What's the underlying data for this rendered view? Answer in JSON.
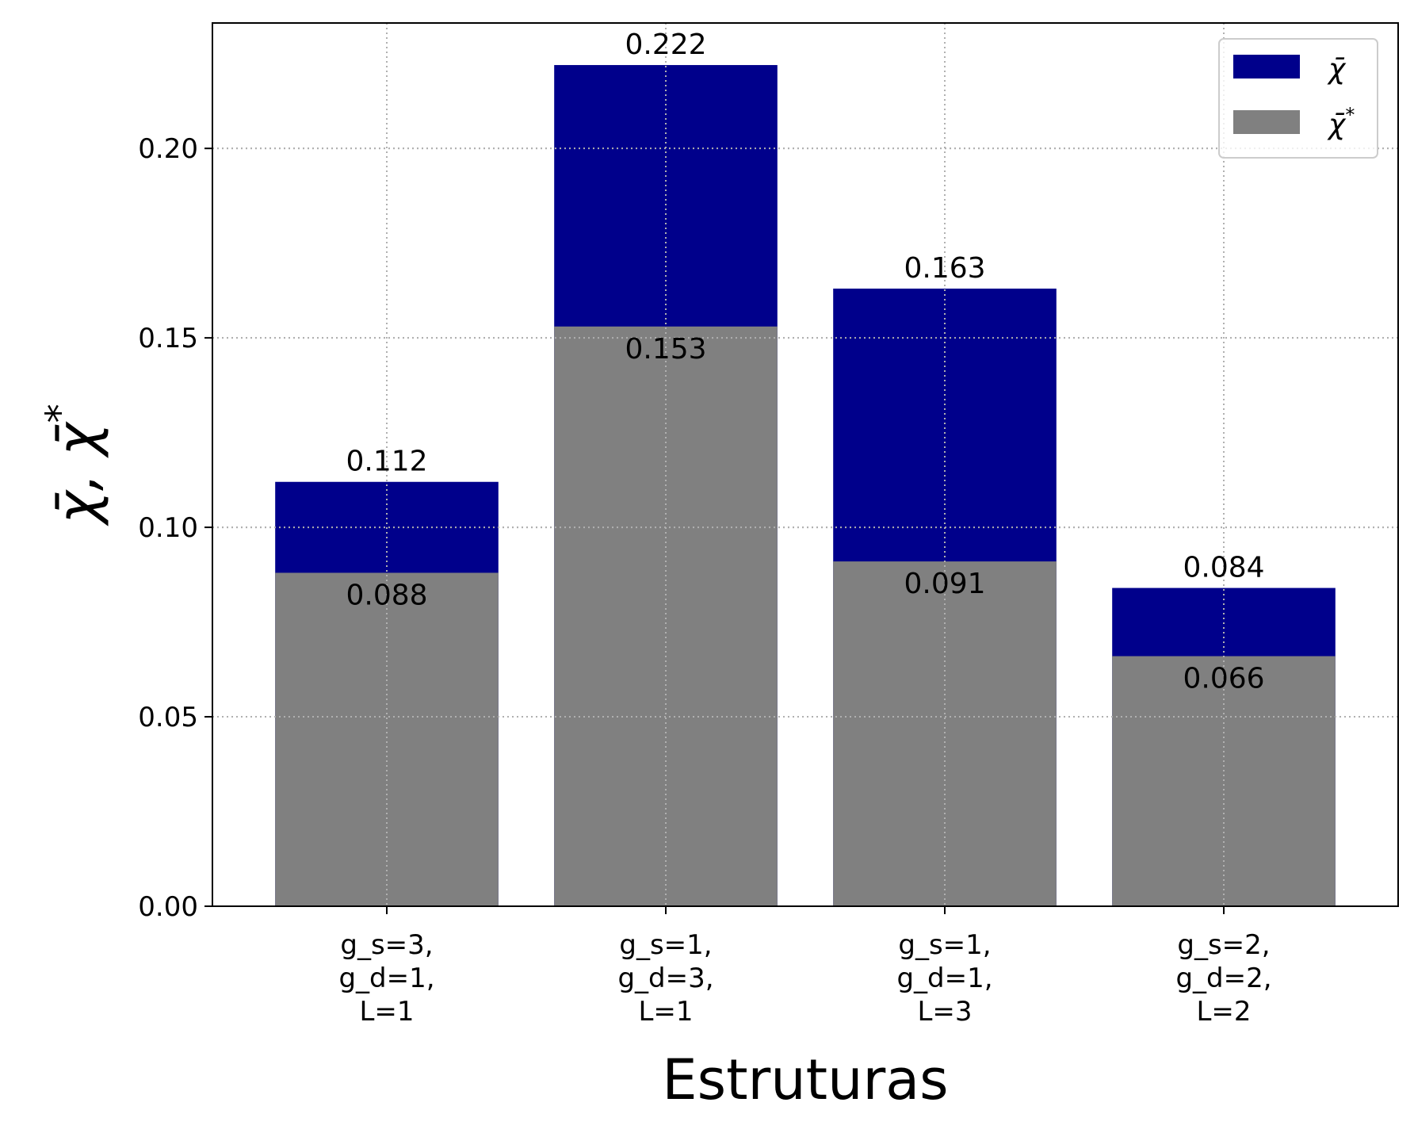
{
  "chart_data": {
    "type": "bar",
    "stacked_overlay": true,
    "categories": [
      [
        "g_s=3,",
        "g_d=1,",
        "L=1"
      ],
      [
        "g_s=1,",
        "g_d=3,",
        "L=1"
      ],
      [
        "g_s=1,",
        "g_d=1,",
        "L=3"
      ],
      [
        "g_s=2,",
        "g_d=2,",
        "L=2"
      ]
    ],
    "series": [
      {
        "name": "χ̄",
        "legend_symbol": "χ̄",
        "color": "#00008b",
        "values": [
          0.112,
          0.222,
          0.163,
          0.084
        ],
        "labels": [
          "0.112",
          "0.222",
          "0.163",
          "0.084"
        ]
      },
      {
        "name": "χ̄*",
        "legend_symbol": "χ̄",
        "legend_sup": "*",
        "color": "#808080",
        "values": [
          0.088,
          0.153,
          0.091,
          0.066
        ],
        "labels": [
          "0.088",
          "0.153",
          "0.091",
          "0.066"
        ]
      }
    ],
    "title": "",
    "xlabel": "Estruturas",
    "ylabel": "χ̄, χ̄",
    "ylabel_sup": "*",
    "ylim": [
      0,
      0.2331
    ],
    "yticks": [
      0.0,
      0.05,
      0.1,
      0.15,
      0.2
    ],
    "ytick_labels": [
      "0.00",
      "0.05",
      "0.10",
      "0.15",
      "0.20"
    ],
    "grid": true,
    "legend_position": "top-right"
  }
}
